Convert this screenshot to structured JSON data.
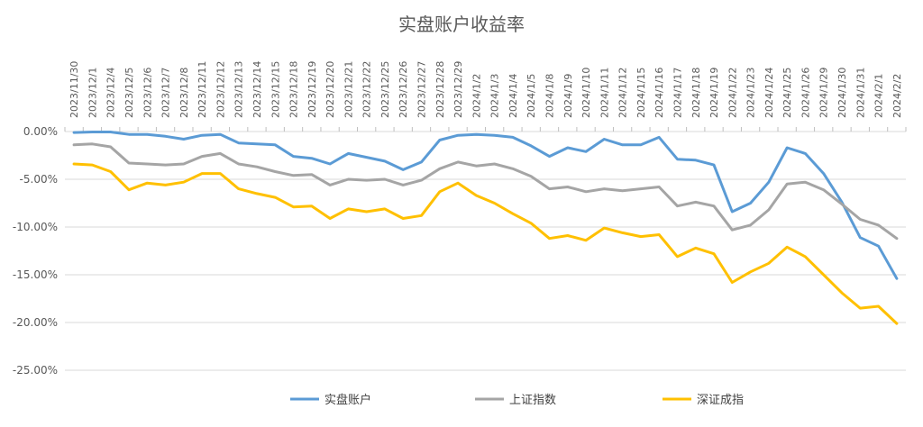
{
  "chart_data": {
    "type": "line",
    "title": "实盘账户收益率",
    "xlabel": "",
    "ylabel": "",
    "ylim": [
      -25,
      0
    ],
    "yticks": [
      0,
      -5,
      -10,
      -15,
      -20,
      -25
    ],
    "ytick_labels": [
      "0.00%",
      "-5.00%",
      "-10.00%",
      "-15.00%",
      "-20.00%",
      "-25.00%"
    ],
    "grid": "horizontal",
    "x_axis_position": "top",
    "legend_position": "bottom",
    "x": [
      "2023/11/30",
      "2023/12/1",
      "2023/12/4",
      "2023/12/5",
      "2023/12/6",
      "2023/12/7",
      "2023/12/8",
      "2023/12/11",
      "2023/12/12",
      "2023/12/13",
      "2023/12/14",
      "2023/12/15",
      "2023/12/18",
      "2023/12/19",
      "2023/12/20",
      "2023/12/21",
      "2023/12/22",
      "2023/12/25",
      "2023/12/26",
      "2023/12/27",
      "2023/12/28",
      "2023/12/29",
      "2024/1/2",
      "2024/1/3",
      "2024/1/4",
      "2024/1/5",
      "2024/1/8",
      "2024/1/9",
      "2024/1/10",
      "2024/1/11",
      "2024/1/12",
      "2024/1/15",
      "2024/1/16",
      "2024/1/17",
      "2024/1/18",
      "2024/1/19",
      "2024/1/22",
      "2024/1/23",
      "2024/1/24",
      "2024/1/25",
      "2024/1/26",
      "2024/1/29",
      "2024/1/30",
      "2024/1/31",
      "2024/2/1",
      "2024/2/2"
    ],
    "series": [
      {
        "name": "实盘账户",
        "color": "#5B9BD5",
        "values": [
          -0.1,
          -0.05,
          -0.05,
          -0.3,
          -0.3,
          -0.5,
          -0.8,
          -0.4,
          -0.3,
          -1.2,
          -1.3,
          -1.4,
          -2.6,
          -2.8,
          -3.4,
          -2.3,
          -2.7,
          -3.1,
          -4.0,
          -3.2,
          -0.9,
          -0.4,
          -0.3,
          -0.4,
          -0.6,
          -1.5,
          -2.6,
          -1.7,
          -2.1,
          -0.8,
          -1.4,
          -1.4,
          -0.6,
          -2.9,
          -3.0,
          -3.5,
          -8.4,
          -7.5,
          -5.3,
          -1.7,
          -2.3,
          -4.4,
          -7.4,
          -11.1,
          -12.0,
          -15.4
        ]
      },
      {
        "name": "上证指数",
        "color": "#A5A5A5",
        "values": [
          -1.4,
          -1.3,
          -1.6,
          -3.3,
          -3.4,
          -3.5,
          -3.4,
          -2.6,
          -2.3,
          -3.4,
          -3.7,
          -4.2,
          -4.6,
          -4.5,
          -5.6,
          -5.0,
          -5.1,
          -5.0,
          -5.6,
          -5.1,
          -3.9,
          -3.2,
          -3.6,
          -3.4,
          -3.9,
          -4.7,
          -6.0,
          -5.8,
          -6.3,
          -6.0,
          -6.2,
          -6.0,
          -5.8,
          -7.8,
          -7.4,
          -7.8,
          -10.3,
          -9.8,
          -8.2,
          -5.5,
          -5.3,
          -6.1,
          -7.6,
          -9.2,
          -9.8,
          -11.2
        ]
      },
      {
        "name": "深证成指",
        "color": "#FFC000",
        "values": [
          -3.4,
          -3.5,
          -4.2,
          -6.1,
          -5.4,
          -5.6,
          -5.3,
          -4.4,
          -4.4,
          -6.0,
          -6.5,
          -6.9,
          -7.9,
          -7.8,
          -9.1,
          -8.1,
          -8.4,
          -8.1,
          -9.1,
          -8.8,
          -6.3,
          -5.4,
          -6.7,
          -7.5,
          -8.6,
          -9.6,
          -11.2,
          -10.9,
          -11.4,
          -10.1,
          -10.6,
          -11.0,
          -10.8,
          -13.1,
          -12.2,
          -12.8,
          -15.8,
          -14.7,
          -13.8,
          -12.1,
          -13.1,
          -15.0,
          -16.9,
          -18.5,
          -18.3,
          -20.1
        ]
      }
    ]
  }
}
